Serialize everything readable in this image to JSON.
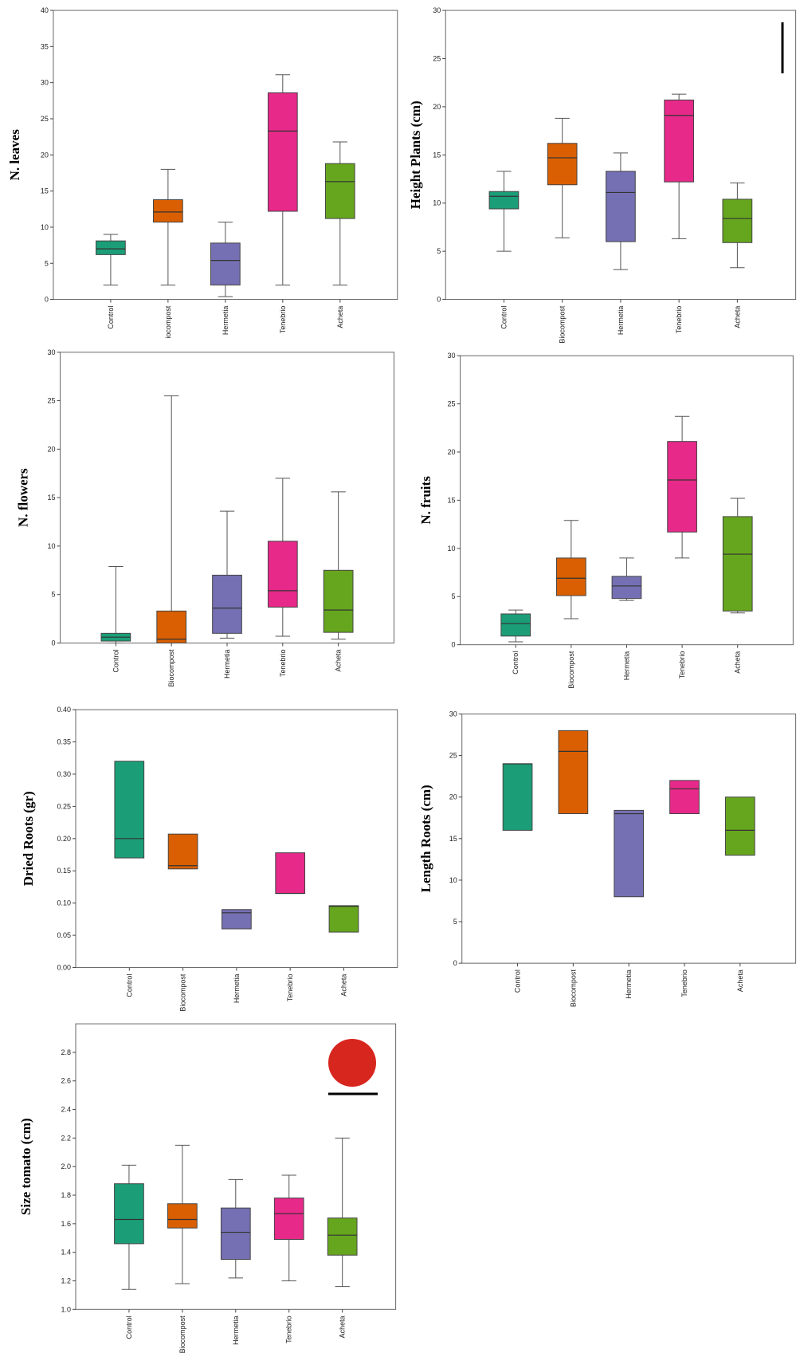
{
  "chart_data": [
    {
      "type": "box",
      "y_label": "N. leaves",
      "ylim": [
        0,
        40
      ],
      "yticks": [
        0,
        5,
        10,
        15,
        20,
        25,
        30,
        35,
        40
      ],
      "categories": [
        "Control",
        "iocompost",
        "Hermetia",
        "Tenebrio",
        "Acheta"
      ],
      "colors": [
        "#1b9e77",
        "#d95f02",
        "#7570b3",
        "#e7298a",
        "#66a61e"
      ],
      "boxes": [
        {
          "min": 2,
          "q1": 6.2,
          "median": 7,
          "q3": 8.1,
          "max": 9
        },
        {
          "min": 2,
          "q1": 10.7,
          "median": 12.1,
          "q3": 13.8,
          "max": 18
        },
        {
          "min": 0.4,
          "q1": 2,
          "median": 5.4,
          "q3": 7.8,
          "max": 10.7
        },
        {
          "min": 2,
          "q1": 12.2,
          "median": 23.3,
          "q3": 28.6,
          "max": 31.1
        },
        {
          "min": 2,
          "q1": 11.2,
          "median": 16.3,
          "q3": 18.8,
          "max": 21.8
        }
      ]
    },
    {
      "type": "box",
      "y_label": "Height Plants (cm)",
      "ylim": [
        0,
        30
      ],
      "yticks": [
        0,
        5,
        10,
        15,
        20,
        25,
        30
      ],
      "categories": [
        "Control",
        "Biocompost",
        "Hermetia",
        "Tenebrio",
        "Acheta"
      ],
      "colors": [
        "#1b9e77",
        "#d95f02",
        "#7570b3",
        "#e7298a",
        "#66a61e"
      ],
      "boxes": [
        {
          "min": 5,
          "q1": 9.4,
          "median": 10.7,
          "q3": 11.2,
          "max": 13.3
        },
        {
          "min": 6.4,
          "q1": 11.9,
          "median": 14.7,
          "q3": 16.2,
          "max": 18.8
        },
        {
          "min": 3.1,
          "q1": 6,
          "median": 11.1,
          "q3": 13.3,
          "max": 15.2
        },
        {
          "min": 6.3,
          "q1": 12.2,
          "median": 19.1,
          "q3": 20.7,
          "max": 21.3
        },
        {
          "min": 3.3,
          "q1": 5.9,
          "median": 8.4,
          "q3": 10.4,
          "max": 12.1
        }
      ]
    },
    {
      "type": "box",
      "y_label": "N. flowers",
      "ylim": [
        0,
        30
      ],
      "yticks": [
        0,
        5,
        10,
        15,
        20,
        25,
        30
      ],
      "categories": [
        "Control",
        "Biocompost",
        "Hermetia",
        "Tenebrio",
        "Acheta"
      ],
      "colors": [
        "#1b9e77",
        "#d95f02",
        "#7570b3",
        "#e7298a",
        "#66a61e"
      ],
      "boxes": [
        {
          "min": 0,
          "q1": 0.2,
          "median": 0.6,
          "q3": 1,
          "max": 7.9
        },
        {
          "min": 0,
          "q1": 0,
          "median": 0.4,
          "q3": 3.3,
          "max": 25.5
        },
        {
          "min": 0.5,
          "q1": 1,
          "median": 3.6,
          "q3": 7,
          "max": 13.6
        },
        {
          "min": 0.7,
          "q1": 3.7,
          "median": 5.4,
          "q3": 10.5,
          "max": 17
        },
        {
          "min": 0.4,
          "q1": 1.1,
          "median": 3.4,
          "q3": 7.5,
          "max": 15.6
        }
      ]
    },
    {
      "type": "box",
      "y_label": "N. fruits",
      "ylim": [
        0,
        30
      ],
      "yticks": [
        0,
        5,
        10,
        15,
        20,
        25,
        30
      ],
      "categories": [
        "Control",
        "Biocompost",
        "Hermetia",
        "Tenebrio",
        "Acheta"
      ],
      "colors": [
        "#1b9e77",
        "#d95f02",
        "#7570b3",
        "#e7298a",
        "#66a61e"
      ],
      "boxes": [
        {
          "min": 0.3,
          "q1": 0.9,
          "median": 2.2,
          "q3": 3.2,
          "max": 3.6
        },
        {
          "min": 2.7,
          "q1": 5.1,
          "median": 6.9,
          "q3": 9,
          "max": 12.9
        },
        {
          "min": 4.6,
          "q1": 4.8,
          "median": 6.1,
          "q3": 7.1,
          "max": 9
        },
        {
          "min": 9,
          "q1": 11.7,
          "median": 17.1,
          "q3": 21.1,
          "max": 23.7
        },
        {
          "min": 3.3,
          "q1": 3.5,
          "median": 9.4,
          "q3": 13.3,
          "max": 15.2
        }
      ]
    },
    {
      "type": "box",
      "y_label": "Dried Roots (gr)",
      "ylim": [
        0,
        0.4
      ],
      "yticks": [
        {
          "value": 0,
          "label": "0.00"
        },
        0.05,
        {
          "value": 0.1,
          "label": "0.10"
        },
        0.15,
        {
          "value": 0.2,
          "label": "0.20"
        },
        0.25,
        {
          "value": 0.3,
          "label": "0.30"
        },
        0.35,
        {
          "value": 0.4,
          "label": "0.40"
        }
      ],
      "categories": [
        "Control",
        "Biocompost",
        "Hermetia",
        "Tenebrio",
        "Acheta"
      ],
      "colors": [
        "#1b9e77",
        "#d95f02",
        "#7570b3",
        "#e7298a",
        "#66a61e"
      ],
      "boxes": [
        {
          "q1": 0.17,
          "median": 0.2,
          "q3": 0.32
        },
        {
          "q1": 0.153,
          "median": 0.158,
          "q3": 0.207
        },
        {
          "q1": 0.06,
          "median": 0.085,
          "q3": 0.09
        },
        {
          "q1": 0.115,
          "median": 0.115,
          "q3": 0.178
        },
        {
          "q1": 0.055,
          "median": 0.095,
          "q3": 0.096
        }
      ]
    },
    {
      "type": "box",
      "y_label": "Length Roots (cm)",
      "ylim": [
        0,
        30
      ],
      "yticks": [
        0,
        5,
        10,
        15,
        20,
        25,
        30
      ],
      "categories": [
        "Control",
        "Biocompost",
        "Hermetia",
        "Tenebrio",
        "Acheta"
      ],
      "colors": [
        "#1b9e77",
        "#d95f02",
        "#7570b3",
        "#e7298a",
        "#66a61e"
      ],
      "boxes": [
        {
          "q1": 16,
          "median": 24,
          "q3": 24
        },
        {
          "q1": 18,
          "median": 25.5,
          "q3": 28
        },
        {
          "q1": 8,
          "median": 18,
          "q3": 18.4
        },
        {
          "q1": 18,
          "median": 21,
          "q3": 22
        },
        {
          "q1": 13,
          "median": 16,
          "q3": 20
        }
      ]
    },
    {
      "type": "box",
      "y_label": "Size tomato (cm)",
      "ylim": [
        1.0,
        3.0
      ],
      "yticks": [
        {
          "value": 1,
          "label": "1.0"
        },
        1.2,
        1.4,
        1.6,
        1.8,
        {
          "value": 2,
          "label": "2.0"
        },
        2.2,
        2.4,
        2.6,
        2.8
      ],
      "categories": [
        "Control",
        "Biocompost",
        "Hermetia",
        "Tenebrio",
        "Acheta"
      ],
      "colors": [
        "#1b9e77",
        "#d95f02",
        "#7570b3",
        "#e7298a",
        "#66a61e"
      ],
      "boxes": [
        {
          "min": 1.14,
          "q1": 1.46,
          "median": 1.63,
          "q3": 1.88,
          "max": 2.01
        },
        {
          "min": 1.18,
          "q1": 1.57,
          "median": 1.63,
          "q3": 1.74,
          "max": 2.15
        },
        {
          "min": 1.22,
          "q1": 1.35,
          "median": 1.54,
          "q3": 1.71,
          "max": 1.91
        },
        {
          "min": 1.2,
          "q1": 1.49,
          "median": 1.67,
          "q3": 1.78,
          "max": 1.94
        },
        {
          "min": 1.16,
          "q1": 1.38,
          "median": 1.52,
          "q3": 1.64,
          "max": 2.2
        }
      ]
    }
  ]
}
